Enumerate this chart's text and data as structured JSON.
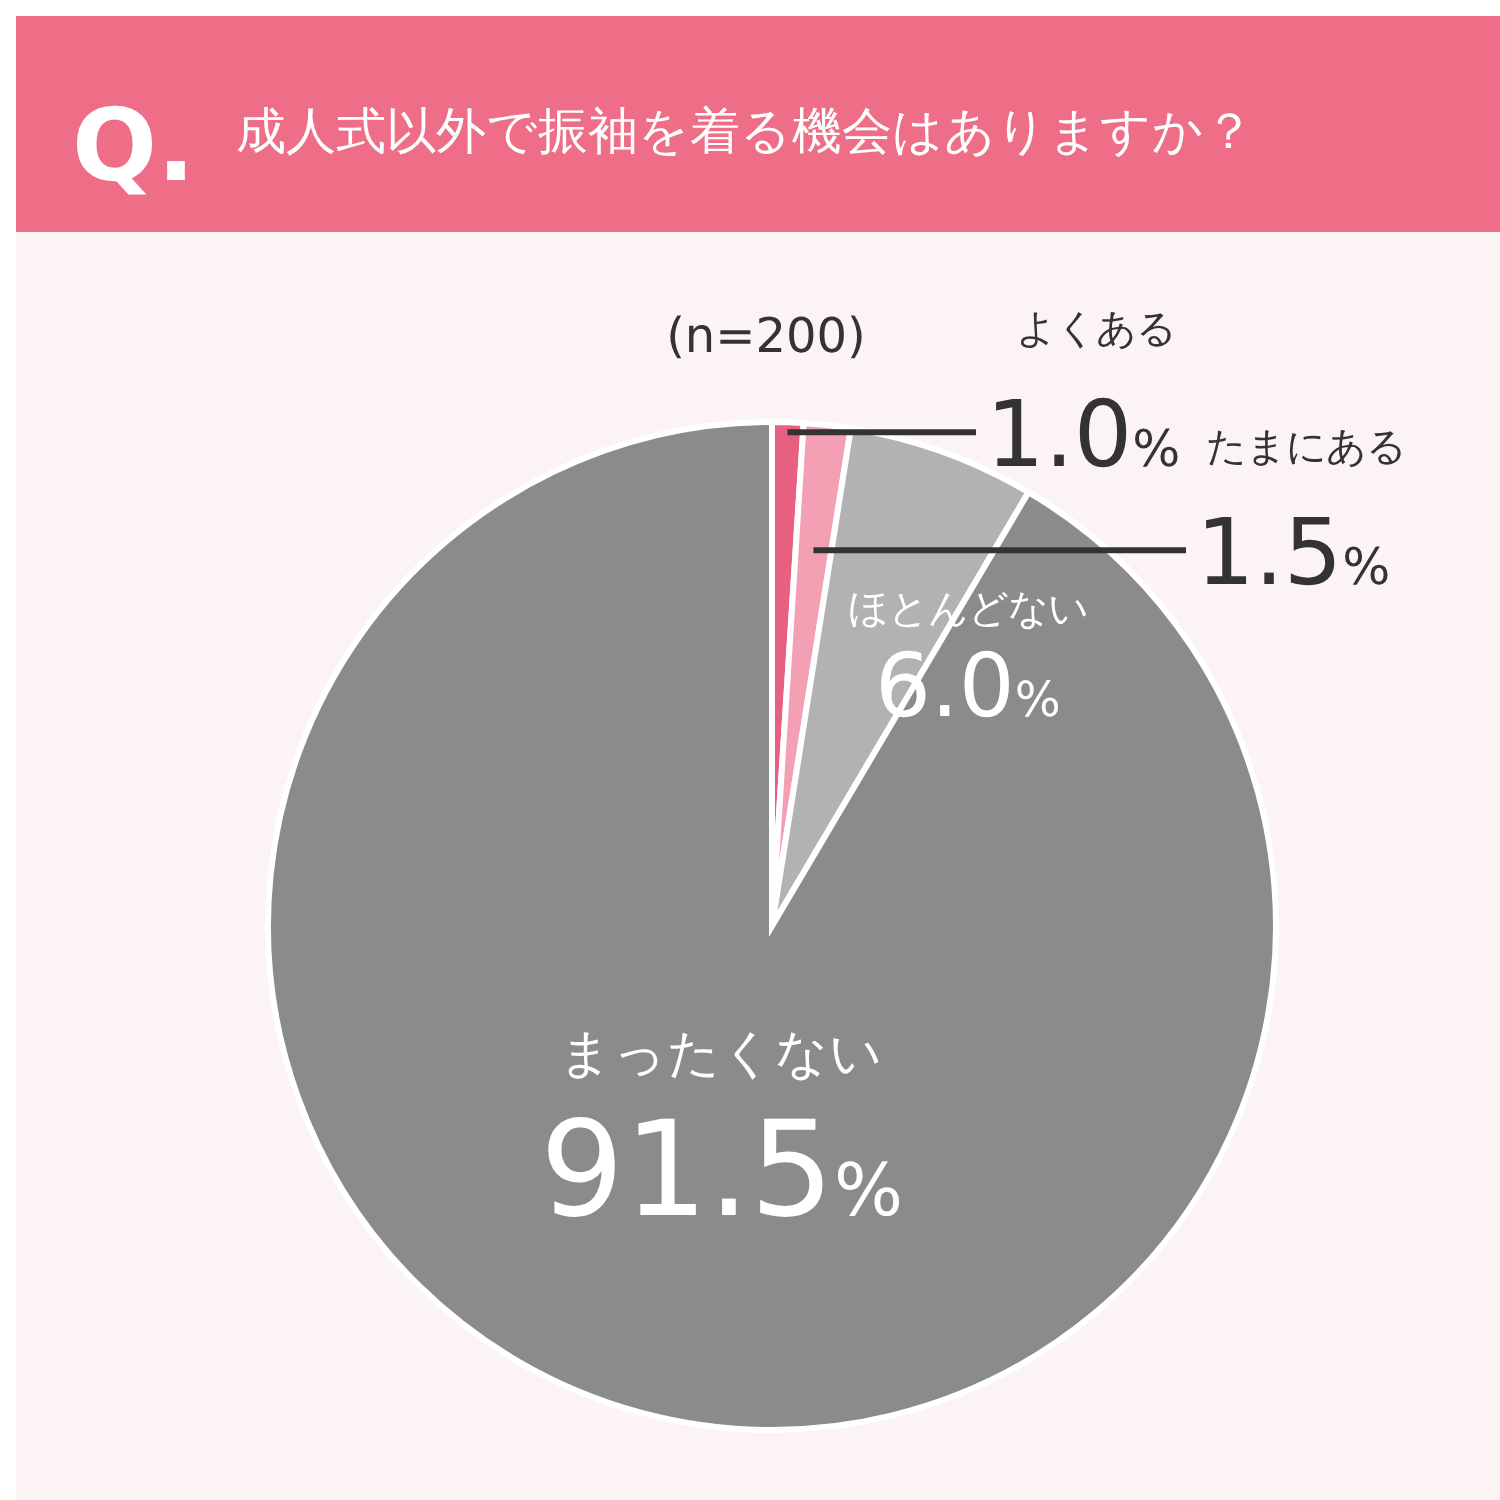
{
  "chart_data": {
    "type": "pie",
    "title": "成人式以外で振袖を着る機会はありますか？",
    "subtitle": "(n=200)",
    "annotations": [
      "Q."
    ],
    "categories": [
      "よくある",
      "たまにある",
      "ほとんどない",
      "まったくない"
    ],
    "values": [
      1.0,
      1.5,
      6.0,
      91.5
    ],
    "colors": [
      "#e8607f",
      "#f4a0b4",
      "#b2b2b2",
      "#8b8b8b"
    ],
    "value_labels": [
      "1.0%",
      "1.5%",
      "6.0%",
      "91.5%"
    ]
  }
}
